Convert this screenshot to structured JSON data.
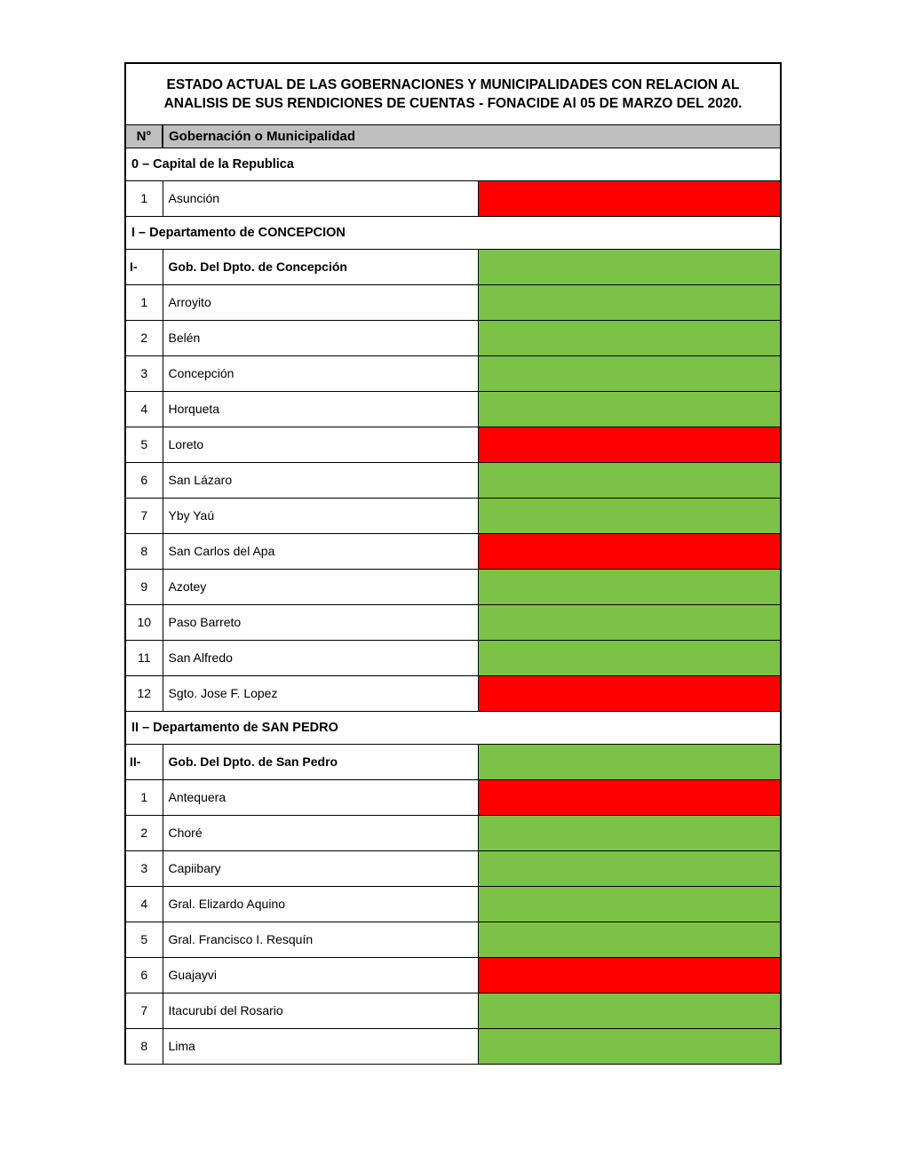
{
  "colors": {
    "green": "#7cc247",
    "red": "#ff0000",
    "header_bg": "#bfbfbf",
    "border": "#000000",
    "background": "#ffffff"
  },
  "title": "ESTADO ACTUAL DE LAS GOBERNACIONES Y MUNICIPALIDADES CON RELACION AL ANALISIS DE SUS RENDICIONES DE CUENTAS - FONACIDE Al 05 DE MARZO DEL 2020.",
  "columns": {
    "num": "N°",
    "name": "Gobernación o Municipalidad"
  },
  "sections": [
    {
      "label": "0 – Capital de la Republica",
      "rows": [
        {
          "num": "1",
          "name": "Asunción",
          "status": "red",
          "bold": false
        }
      ]
    },
    {
      "label": "I – Departamento de CONCEPCION",
      "rows": [
        {
          "num": "I-",
          "name": "Gob. Del Dpto. de Concepción",
          "status": "green",
          "bold": true
        },
        {
          "num": "1",
          "name": "Arroyito",
          "status": "green",
          "bold": false
        },
        {
          "num": "2",
          "name": "Belén",
          "status": "green",
          "bold": false
        },
        {
          "num": "3",
          "name": "Concepción",
          "status": "green",
          "bold": false
        },
        {
          "num": "4",
          "name": "Horqueta",
          "status": "green",
          "bold": false
        },
        {
          "num": "5",
          "name": "Loreto",
          "status": "red",
          "bold": false
        },
        {
          "num": "6",
          "name": "San Lázaro",
          "status": "green",
          "bold": false
        },
        {
          "num": "7",
          "name": "Yby Yaú",
          "status": "green",
          "bold": false
        },
        {
          "num": "8",
          "name": "San Carlos del Apa",
          "status": "red",
          "bold": false
        },
        {
          "num": "9",
          "name": "Azotey",
          "status": "green",
          "bold": false
        },
        {
          "num": "10",
          "name": "Paso Barreto",
          "status": "green",
          "bold": false
        },
        {
          "num": "11",
          "name": "San Alfredo",
          "status": "green",
          "bold": false
        },
        {
          "num": "12",
          "name": "Sgto. Jose F. Lopez",
          "status": "red",
          "bold": false
        }
      ]
    },
    {
      "label": "II – Departamento de SAN PEDRO",
      "rows": [
        {
          "num": "II-",
          "name": "Gob. Del Dpto. de San Pedro",
          "status": "green",
          "bold": true
        },
        {
          "num": "1",
          "name": "Antequera",
          "status": "red",
          "bold": false
        },
        {
          "num": "2",
          "name": "Choré",
          "status": "green",
          "bold": false
        },
        {
          "num": "3",
          "name": "Capiibary",
          "status": "green",
          "bold": false
        },
        {
          "num": "4",
          "name": "Gral. Elizardo Aquino",
          "status": "green",
          "bold": false
        },
        {
          "num": "5",
          "name": "Gral. Francisco I. Resquín",
          "status": "green",
          "bold": false
        },
        {
          "num": "6",
          "name": "Guajayvi",
          "status": "red",
          "bold": false
        },
        {
          "num": "7",
          "name": "Itacurubí del Rosario",
          "status": "green",
          "bold": false
        },
        {
          "num": "8",
          "name": "Lima",
          "status": "green",
          "bold": false
        }
      ]
    }
  ]
}
